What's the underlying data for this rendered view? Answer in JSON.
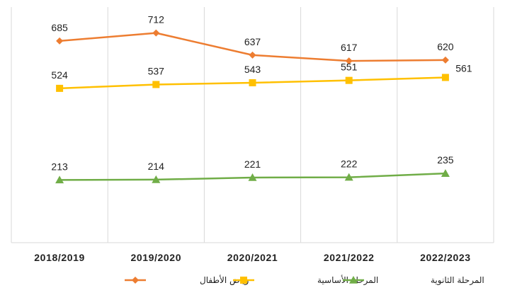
{
  "chart_data": {
    "type": "line",
    "title": "",
    "xlabel": "",
    "ylabel": "",
    "categories": [
      "2018/2019",
      "2019/2020",
      "2020/2021",
      "2021/2022",
      "2022/2023"
    ],
    "ylim": [
      0,
      800
    ],
    "grid": "vertical",
    "legend_position": "bottom",
    "series": [
      {
        "name": "رياض الأطفال",
        "values": [
          685,
          712,
          637,
          617,
          620
        ],
        "color": "#ED7D31",
        "marker": "diamond"
      },
      {
        "name": "المرحلة الأساسية",
        "values": [
          524,
          537,
          543,
          551,
          561
        ],
        "color": "#FFC000",
        "marker": "square"
      },
      {
        "name": "المرحلة الثانوية",
        "values": [
          213,
          214,
          221,
          222,
          235
        ],
        "color": "#70AD47",
        "marker": "triangle"
      }
    ]
  }
}
